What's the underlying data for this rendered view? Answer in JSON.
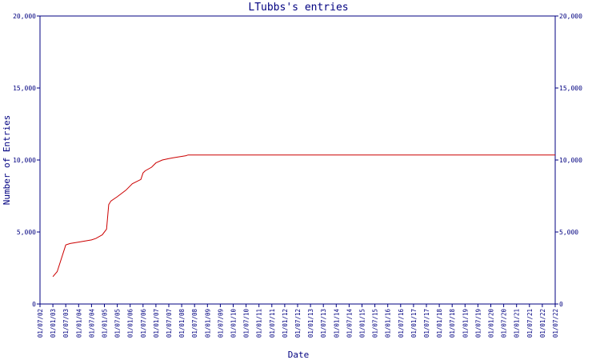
{
  "chart_data": {
    "type": "line",
    "title": "LTubbs's entries",
    "xlabel": "Date",
    "ylabel": "Number of Entries",
    "ylim": [
      0,
      20000
    ],
    "yticks": [
      "0",
      "5,000",
      "10,000",
      "15,000",
      "20,000"
    ],
    "ytick_values": [
      0,
      5000,
      10000,
      15000,
      20000
    ],
    "secondary_y_axis": true,
    "grid": false,
    "colors": {
      "axis": "#000080",
      "line": "#cc0000",
      "background": "#ffffff"
    },
    "x_categories": [
      "01/07/02",
      "01/01/03",
      "01/07/03",
      "01/01/04",
      "01/07/04",
      "01/01/05",
      "01/07/05",
      "01/01/06",
      "01/07/06",
      "01/01/07",
      "01/07/07",
      "01/01/08",
      "01/07/08",
      "01/01/09",
      "01/07/09",
      "01/01/10",
      "01/07/10",
      "01/01/11",
      "01/07/11",
      "01/01/12",
      "01/07/12",
      "01/01/13",
      "01/07/13",
      "01/01/14",
      "01/07/14",
      "01/01/15",
      "01/07/15",
      "01/01/16",
      "01/07/16",
      "01/01/17",
      "01/07/17",
      "01/01/18",
      "01/07/18",
      "01/01/19",
      "01/07/19",
      "01/01/20",
      "01/07/20",
      "01/01/21",
      "01/07/21",
      "01/01/22",
      "01/07/22"
    ],
    "series": [
      {
        "x": [
          "01/01/03",
          "01/03/03",
          "01/07/03",
          "01/09/03",
          "01/01/04",
          "01/07/04",
          "01/09/04",
          "01/12/04",
          "01/02/05",
          "01/03/05",
          "01/04/05",
          "01/07/05",
          "01/11/05",
          "01/02/06",
          "01/06/06",
          "01/07/06",
          "01/08/06",
          "01/11/06",
          "01/01/07",
          "01/04/07",
          "01/07/07",
          "01/09/07",
          "01/11/07",
          "01/03/08",
          "01/04/08",
          "01/09/08",
          "01/07/22"
        ],
        "y": [
          1900,
          2250,
          4100,
          4200,
          4300,
          4450,
          4550,
          4800,
          5200,
          6900,
          7150,
          7450,
          7900,
          8350,
          8650,
          9100,
          9250,
          9500,
          9800,
          10000,
          10100,
          10150,
          10200,
          10300,
          10350,
          10350,
          10350
        ]
      }
    ]
  }
}
